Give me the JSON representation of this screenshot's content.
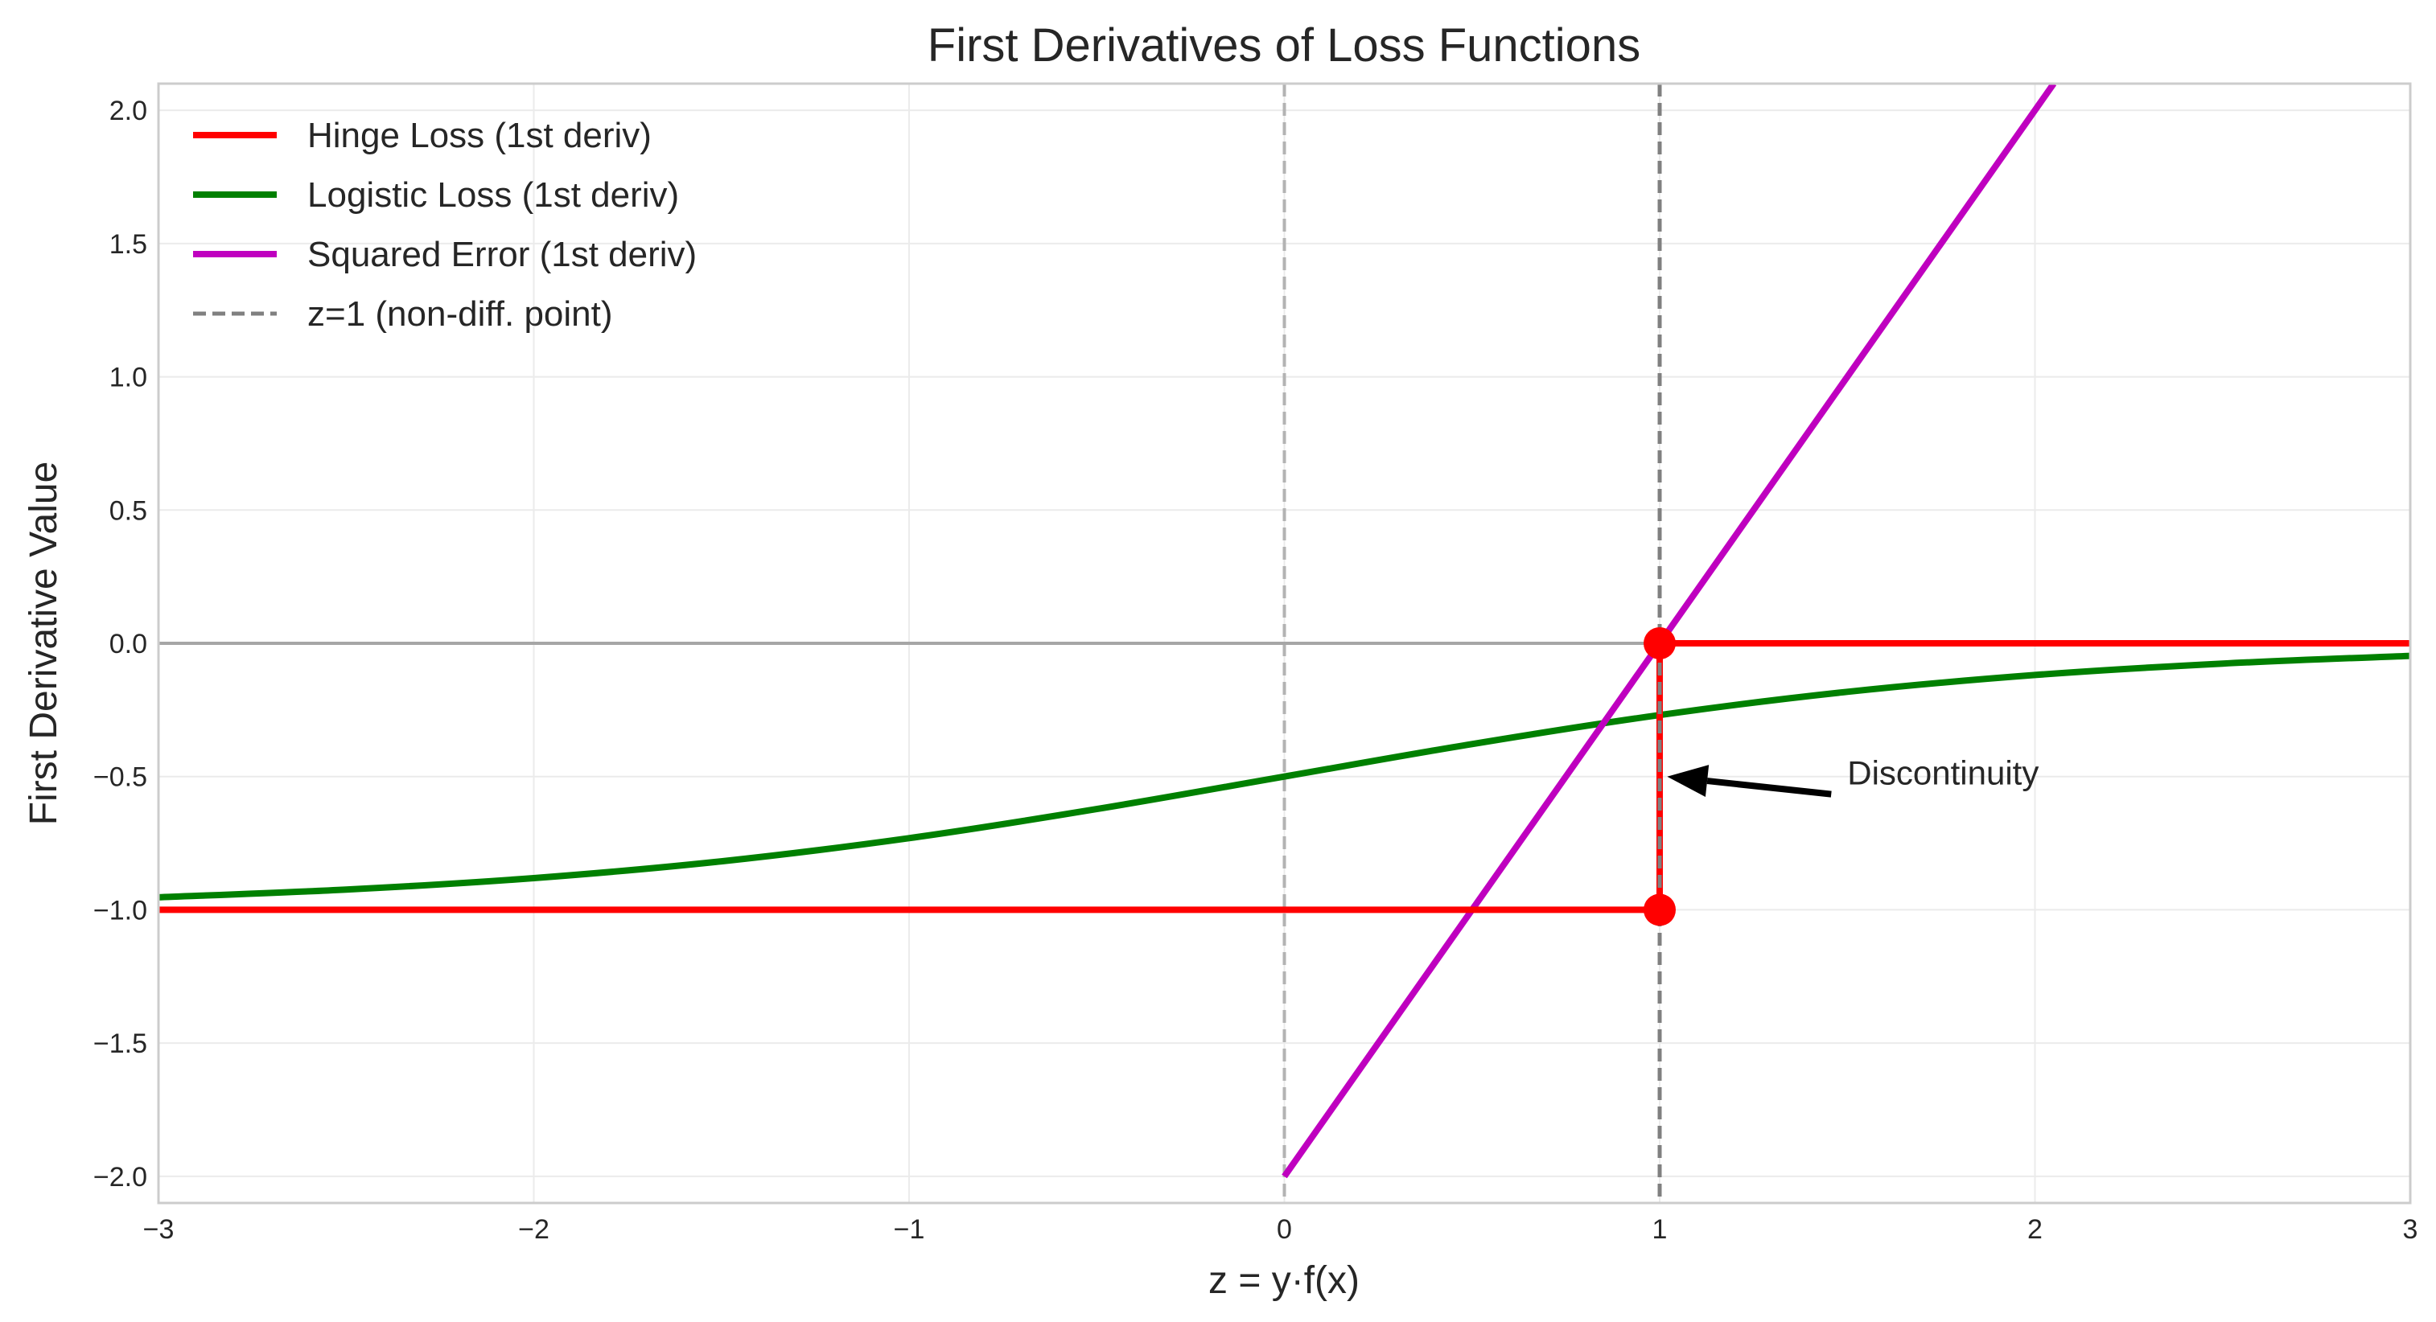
{
  "chart_data": {
    "type": "line",
    "title": "First Derivatives of Loss Functions",
    "xlabel": "z = y·f(x)",
    "ylabel": "First Derivative Value",
    "xlim": [
      -3,
      3
    ],
    "ylim": [
      -2.1,
      2.1
    ],
    "xticks": [
      -3,
      -2,
      -1,
      0,
      1,
      2,
      3
    ],
    "xtick_labels": [
      "−3",
      "−2",
      "−1",
      "0",
      "1",
      "2",
      "3"
    ],
    "yticks": [
      -2.0,
      -1.5,
      -1.0,
      -0.5,
      0.0,
      0.5,
      1.0,
      1.5,
      2.0
    ],
    "ytick_labels": [
      "−2.0",
      "−1.5",
      "−1.0",
      "−0.5",
      "0.0",
      "0.5",
      "1.0",
      "1.5",
      "2.0"
    ],
    "grid": true,
    "legend_position": "top-left",
    "series": [
      {
        "name": "Hinge Loss (1st deriv)",
        "color": "#ff0000",
        "points": [
          [
            -3,
            -1
          ],
          [
            1,
            -1
          ],
          [
            1,
            0
          ],
          [
            3,
            0
          ]
        ],
        "markers": [
          [
            1,
            -1
          ],
          [
            1,
            0
          ]
        ]
      },
      {
        "name": "Logistic Loss (1st deriv)",
        "color": "#008000",
        "points": [
          [
            -3,
            -0.953
          ],
          [
            -2.5,
            -0.924
          ],
          [
            -2,
            -0.881
          ],
          [
            -1.5,
            -0.818
          ],
          [
            -1,
            -0.731
          ],
          [
            -0.5,
            -0.622
          ],
          [
            0,
            -0.5
          ],
          [
            0.5,
            -0.378
          ],
          [
            1,
            -0.269
          ],
          [
            1.5,
            -0.182
          ],
          [
            2,
            -0.119
          ],
          [
            2.5,
            -0.076
          ],
          [
            3,
            -0.047
          ]
        ]
      },
      {
        "name": "Squared Error (1st deriv)",
        "color": "#bf00bf",
        "points": [
          [
            0,
            -2
          ],
          [
            2.05,
            2.1
          ]
        ]
      },
      {
        "name": "z=1 (non-diff. point)",
        "color": "#808080",
        "style": "dashed",
        "vertical_x": 1
      }
    ],
    "reference_lines": [
      {
        "orientation": "vertical",
        "x": 0,
        "color": "#b3b3b3",
        "style": "dashed"
      },
      {
        "orientation": "horizontal",
        "y": 0,
        "color": "#a6a6a6",
        "style": "solid"
      }
    ],
    "annotations": [
      {
        "text": "Discontinuity",
        "text_at": [
          1.5,
          -0.53
        ],
        "arrow_to": [
          1.02,
          -0.5
        ],
        "color": "#000000"
      }
    ]
  }
}
